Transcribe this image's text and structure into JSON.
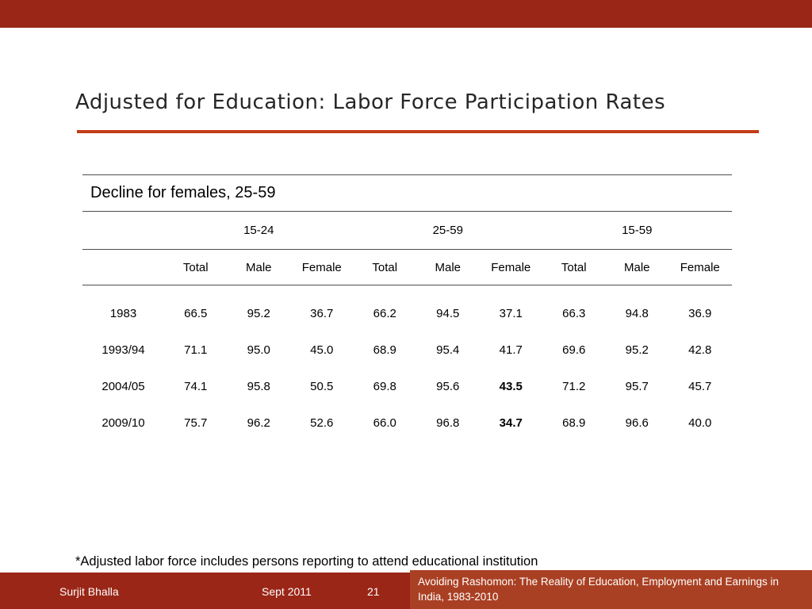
{
  "slide": {
    "title": "Adjusted for Education: Labor Force Participation Rates",
    "subtitle": "Decline for females, 25-59",
    "footnote": "*Adjusted labor force includes persons reporting to attend educational institution"
  },
  "table": {
    "group_headers": [
      "15-24",
      "25-59",
      "15-59"
    ],
    "column_headers": [
      "Total",
      "Male",
      "Female",
      "Total",
      "Male",
      "Female",
      "Total",
      "Male",
      "Female"
    ],
    "rows": [
      {
        "label": "1983",
        "values": [
          "66.5",
          "95.2",
          "36.7",
          "66.2",
          "94.5",
          "37.1",
          "66.3",
          "94.8",
          "36.9"
        ]
      },
      {
        "label": "1993/94",
        "values": [
          "71.1",
          "95.0",
          "45.0",
          "68.9",
          "95.4",
          "41.7",
          "69.6",
          "95.2",
          "42.8"
        ]
      },
      {
        "label": "2004/05",
        "values": [
          "74.1",
          "95.8",
          "50.5",
          "69.8",
          "95.6",
          "43.5",
          "71.2",
          "95.7",
          "45.7"
        ]
      },
      {
        "label": "2009/10",
        "values": [
          "75.7",
          "96.2",
          "52.6",
          "66.0",
          "96.8",
          "34.7",
          "68.9",
          "96.6",
          "40.0"
        ]
      }
    ],
    "bold_cells": [
      [
        2,
        5
      ],
      [
        3,
        5
      ]
    ]
  },
  "footer": {
    "author": "Surjit Bhalla",
    "date": "Sept 2011",
    "page_number": "21",
    "reference": "Avoiding Rashomon: The Reality of Education, Employment and Earnings in India, 1983-2010"
  },
  "colors": {
    "bar": "#9a2617",
    "accent": "#c33d1a",
    "reference_box": "#aa4023"
  }
}
